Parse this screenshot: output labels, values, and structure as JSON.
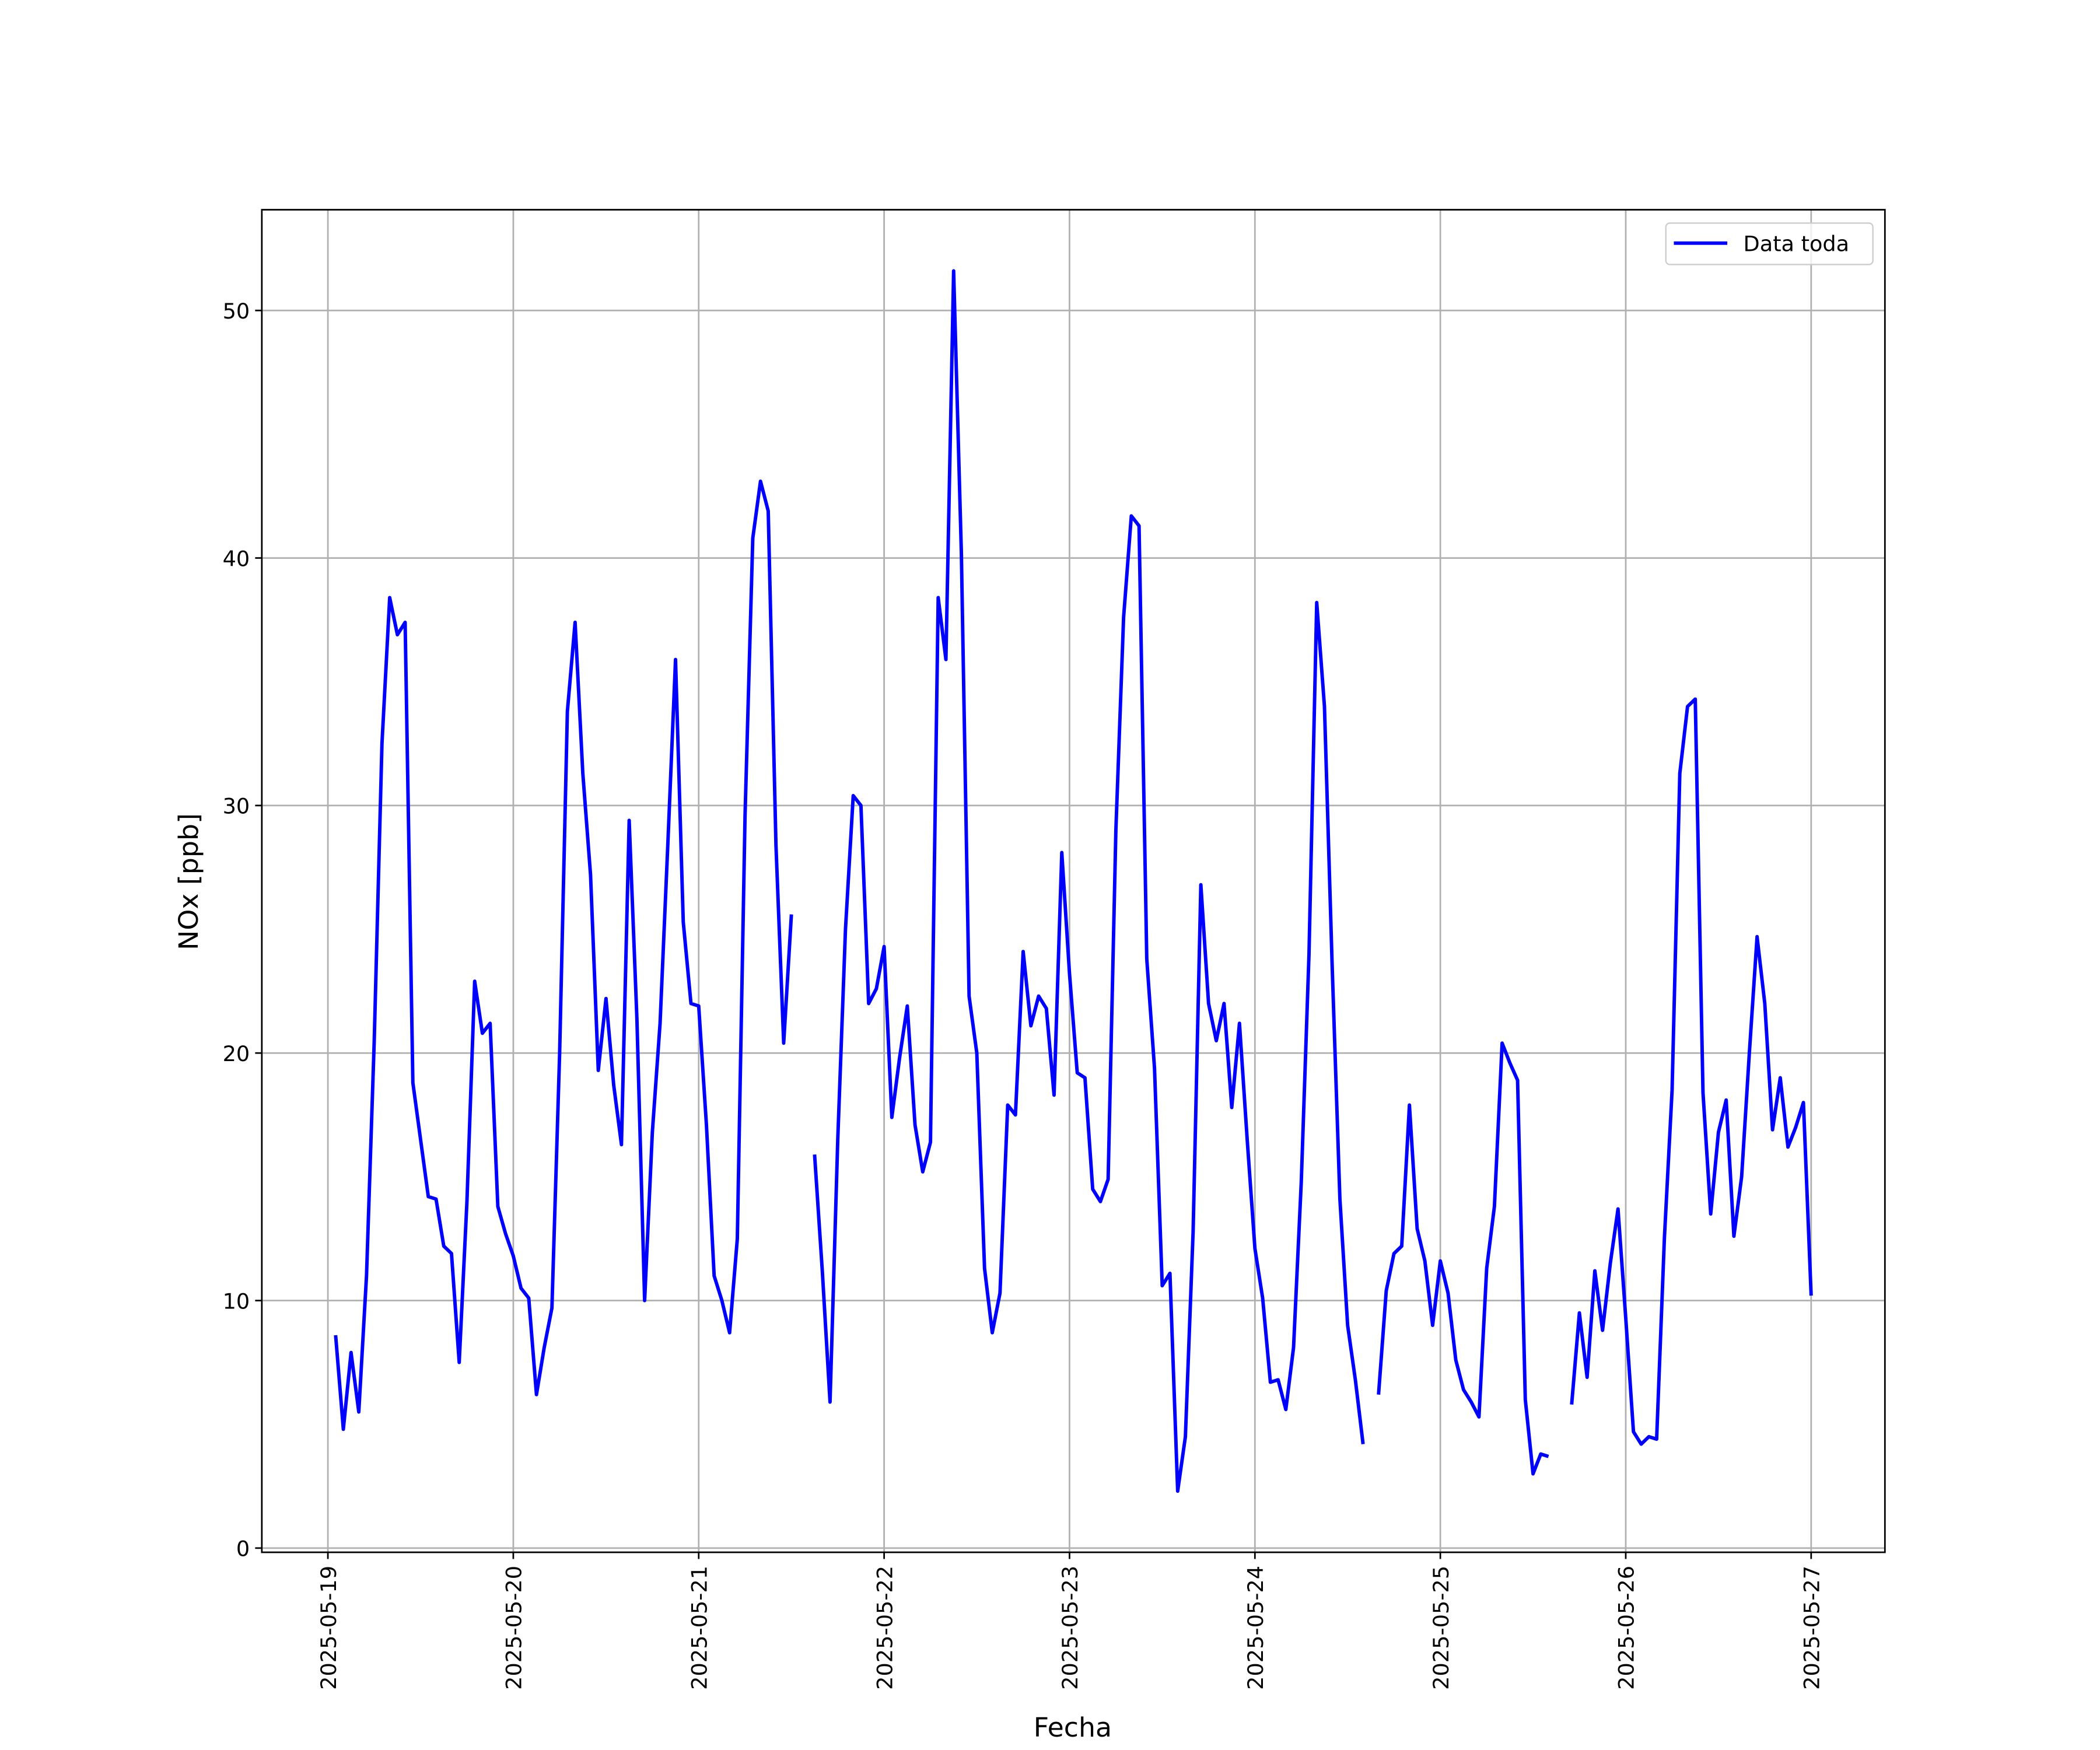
{
  "chart_data": {
    "type": "line",
    "x_label": "Fecha",
    "y_label": "NOx [ppb]",
    "x": [
      "2025-05-19 01:00",
      "2025-05-19 02:00",
      "2025-05-19 03:00",
      "2025-05-19 04:00",
      "2025-05-19 05:00",
      "2025-05-19 06:00",
      "2025-05-19 07:00",
      "2025-05-19 08:00",
      "2025-05-19 09:00",
      "2025-05-19 10:00",
      "2025-05-19 11:00",
      "2025-05-19 12:00",
      "2025-05-19 13:00",
      "2025-05-19 14:00",
      "2025-05-19 15:00",
      "2025-05-19 16:00",
      "2025-05-19 17:00",
      "2025-05-19 18:00",
      "2025-05-19 19:00",
      "2025-05-19 20:00",
      "2025-05-19 21:00",
      "2025-05-19 22:00",
      "2025-05-19 23:00",
      "2025-05-20 00:00",
      "2025-05-20 01:00",
      "2025-05-20 02:00",
      "2025-05-20 03:00",
      "2025-05-20 04:00",
      "2025-05-20 05:00",
      "2025-05-20 06:00",
      "2025-05-20 07:00",
      "2025-05-20 08:00",
      "2025-05-20 09:00",
      "2025-05-20 10:00",
      "2025-05-20 11:00",
      "2025-05-20 12:00",
      "2025-05-20 13:00",
      "2025-05-20 14:00",
      "2025-05-20 15:00",
      "2025-05-20 16:00",
      "2025-05-20 17:00",
      "2025-05-20 18:00",
      "2025-05-20 19:00",
      "2025-05-20 20:00",
      "2025-05-20 21:00",
      "2025-05-20 22:00",
      "2025-05-20 23:00",
      "2025-05-21 00:00",
      "2025-05-21 01:00",
      "2025-05-21 02:00",
      "2025-05-21 03:00",
      "2025-05-21 04:00",
      "2025-05-21 05:00",
      "2025-05-21 06:00",
      "2025-05-21 07:00",
      "2025-05-21 08:00",
      "2025-05-21 09:00",
      "2025-05-21 10:00",
      "2025-05-21 11:00",
      "2025-05-21 12:00",
      "2025-05-21 13:00",
      "2025-05-21 14:00",
      "2025-05-21 15:00",
      "2025-05-21 16:00",
      "2025-05-21 17:00",
      "2025-05-21 18:00",
      "2025-05-21 19:00",
      "2025-05-21 20:00",
      "2025-05-21 21:00",
      "2025-05-21 22:00",
      "2025-05-21 23:00",
      "2025-05-22 00:00",
      "2025-05-22 01:00",
      "2025-05-22 02:00",
      "2025-05-22 03:00",
      "2025-05-22 04:00",
      "2025-05-22 05:00",
      "2025-05-22 06:00",
      "2025-05-22 07:00",
      "2025-05-22 08:00",
      "2025-05-22 09:00",
      "2025-05-22 10:00",
      "2025-05-22 11:00",
      "2025-05-22 12:00",
      "2025-05-22 13:00",
      "2025-05-22 14:00",
      "2025-05-22 15:00",
      "2025-05-22 16:00",
      "2025-05-22 17:00",
      "2025-05-22 18:00",
      "2025-05-22 19:00",
      "2025-05-22 20:00",
      "2025-05-22 21:00",
      "2025-05-22 22:00",
      "2025-05-22 23:00",
      "2025-05-23 00:00",
      "2025-05-23 01:00",
      "2025-05-23 02:00",
      "2025-05-23 03:00",
      "2025-05-23 04:00",
      "2025-05-23 05:00",
      "2025-05-23 06:00",
      "2025-05-23 07:00",
      "2025-05-23 08:00",
      "2025-05-23 09:00",
      "2025-05-23 10:00",
      "2025-05-23 11:00",
      "2025-05-23 12:00",
      "2025-05-23 13:00",
      "2025-05-23 14:00",
      "2025-05-23 15:00",
      "2025-05-23 16:00",
      "2025-05-23 17:00",
      "2025-05-23 18:00",
      "2025-05-23 19:00",
      "2025-05-23 20:00",
      "2025-05-23 21:00",
      "2025-05-23 22:00",
      "2025-05-23 23:00",
      "2025-05-24 00:00",
      "2025-05-24 01:00",
      "2025-05-24 02:00",
      "2025-05-24 03:00",
      "2025-05-24 04:00",
      "2025-05-24 05:00",
      "2025-05-24 06:00",
      "2025-05-24 07:00",
      "2025-05-24 08:00",
      "2025-05-24 09:00",
      "2025-05-24 10:00",
      "2025-05-24 11:00",
      "2025-05-24 12:00",
      "2025-05-24 13:00",
      "2025-05-24 14:00",
      "2025-05-24 15:00",
      "2025-05-24 16:00",
      "2025-05-24 17:00",
      "2025-05-24 18:00",
      "2025-05-24 19:00",
      "2025-05-24 20:00",
      "2025-05-24 21:00",
      "2025-05-24 22:00",
      "2025-05-24 23:00",
      "2025-05-25 00:00",
      "2025-05-25 01:00",
      "2025-05-25 02:00",
      "2025-05-25 03:00",
      "2025-05-25 04:00",
      "2025-05-25 05:00",
      "2025-05-25 06:00",
      "2025-05-25 07:00",
      "2025-05-25 08:00",
      "2025-05-25 09:00",
      "2025-05-25 10:00",
      "2025-05-25 11:00",
      "2025-05-25 12:00",
      "2025-05-25 13:00",
      "2025-05-25 14:00",
      "2025-05-25 15:00",
      "2025-05-25 16:00",
      "2025-05-25 17:00",
      "2025-05-25 18:00",
      "2025-05-25 19:00",
      "2025-05-25 20:00",
      "2025-05-25 21:00",
      "2025-05-25 22:00",
      "2025-05-25 23:00",
      "2025-05-26 00:00",
      "2025-05-26 01:00",
      "2025-05-26 02:00",
      "2025-05-26 03:00",
      "2025-05-26 04:00",
      "2025-05-26 05:00",
      "2025-05-26 06:00",
      "2025-05-26 07:00",
      "2025-05-26 08:00",
      "2025-05-26 09:00",
      "2025-05-26 10:00",
      "2025-05-26 11:00",
      "2025-05-26 12:00",
      "2025-05-26 13:00",
      "2025-05-26 14:00",
      "2025-05-26 15:00",
      "2025-05-26 16:00",
      "2025-05-26 17:00",
      "2025-05-26 18:00",
      "2025-05-26 19:00",
      "2025-05-26 20:00",
      "2025-05-26 21:00",
      "2025-05-26 22:00",
      "2025-05-26 23:00",
      "2025-05-27 00:00"
    ],
    "series": [
      {
        "name": "Data toda",
        "color": "#0000ff",
        "values": [
          8.6,
          4.8,
          7.9,
          5.5,
          11,
          20.5,
          32.5,
          38.4,
          36.9,
          37.4,
          18.8,
          16.5,
          14.2,
          14.1,
          12.2,
          11.9,
          7.5,
          14,
          22.9,
          20.8,
          21.2,
          13.8,
          12.7,
          11.8,
          10.5,
          10.1,
          6.2,
          8.1,
          9.7,
          20,
          33.8,
          37.4,
          31.3,
          27.2,
          19.3,
          22.2,
          18.7,
          16.3,
          29.4,
          21.4,
          10,
          16.8,
          21.2,
          28.4,
          35.9,
          25.3,
          22,
          21.9,
          17.1,
          11,
          10,
          8.7,
          12.5,
          29.6,
          40.8,
          43.1,
          41.9,
          28.4,
          20.4,
          25.6,
          null,
          null,
          15.9,
          11.2,
          5.9,
          16.5,
          25,
          30.4,
          30,
          22,
          22.6,
          24.3,
          17.4,
          19.8,
          21.9,
          17.1,
          15.2,
          16.4,
          38.4,
          35.9,
          51.6,
          40.2,
          22.3,
          20,
          11.3,
          8.7,
          10.3,
          17.9,
          17.5,
          24.1,
          21.1,
          22.3,
          21.8,
          18.3,
          28.1,
          23.2,
          19.2,
          19,
          14.5,
          14,
          14.9,
          29,
          37.6,
          41.7,
          41.3,
          23.8,
          19.4,
          10.6,
          11.1,
          2.3,
          4.5,
          12.8,
          26.8,
          22,
          20.5,
          22,
          17.8,
          21.2,
          16.5,
          12.1,
          10.1,
          6.7,
          6.8,
          5.6,
          8.1,
          14.8,
          24,
          38.2,
          34,
          23.5,
          14.1,
          9,
          6.8,
          4.2,
          null,
          6.2,
          10.4,
          11.9,
          12.2,
          17.9,
          12.9,
          11.6,
          9,
          11.6,
          10.3,
          7.6,
          6.4,
          5.9,
          5.3,
          11.3,
          13.8,
          20.4,
          19.6,
          18.9,
          6,
          3,
          3.8,
          3.7,
          null,
          null,
          5.8,
          9.5,
          6.9,
          11.2,
          8.8,
          11.5,
          13.7,
          9.3,
          4.7,
          4.2,
          4.5,
          4.4,
          12.5,
          18.5,
          31.3,
          34,
          34.3,
          18.4,
          13.5,
          16.8,
          18.1,
          12.6,
          15,
          20,
          24.7,
          22,
          16.9,
          19,
          16.2,
          17,
          18,
          10.2
        ]
      }
    ],
    "xlim": [
      "2025-05-18 15:27",
      "2025-05-27 09:33"
    ],
    "xticks": [
      "2025-05-19",
      "2025-05-20",
      "2025-05-21",
      "2025-05-22",
      "2025-05-23",
      "2025-05-24",
      "2025-05-25",
      "2025-05-26",
      "2025-05-27"
    ],
    "ylim": [
      -0.17,
      54.07
    ],
    "yticks": [
      0,
      10,
      20,
      30,
      40,
      50
    ],
    "grid": true,
    "legend": "upper right"
  }
}
